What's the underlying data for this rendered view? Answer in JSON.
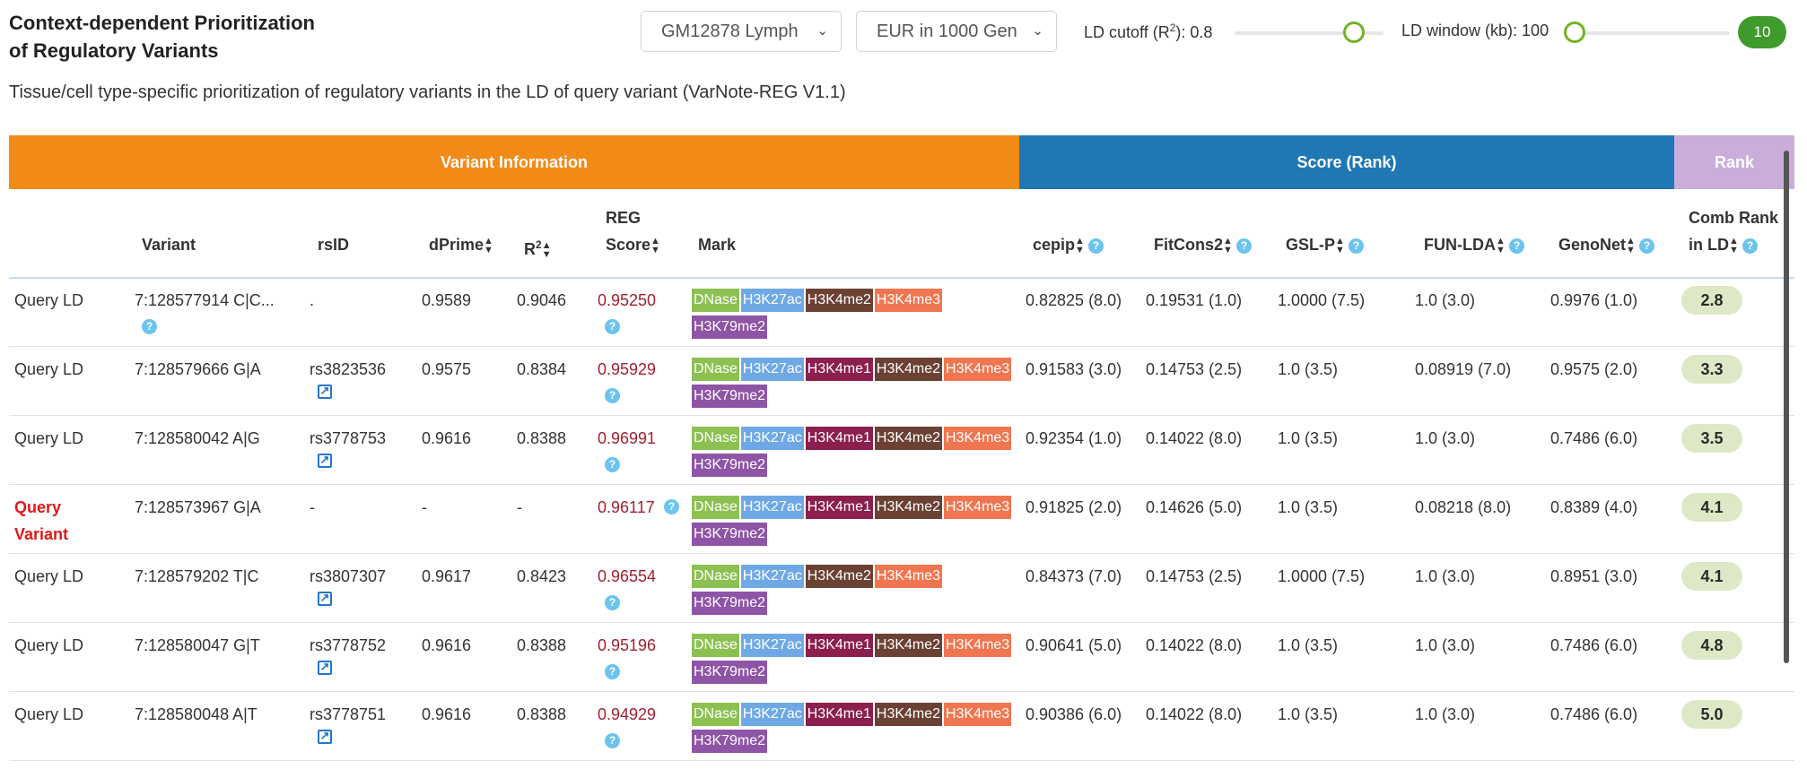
{
  "header": {
    "title_line1": "Context-dependent Prioritization",
    "title_line2": "of Regulatory Variants",
    "subtitle": "Tissue/cell type-specific prioritization of regulatory variants in the LD of query variant (VarNote-REG V1.1)"
  },
  "controls": {
    "cell_select": "GM12878 Lymph",
    "population_select": "EUR in 1000 Gen",
    "ld_cutoff_label_pre": "LD cutoff (R",
    "ld_cutoff_label_sup": "2",
    "ld_cutoff_label_post": "): 0.8",
    "ld_cutoff_value": 0.8,
    "ld_window_label": "LD window (kb): 100",
    "ld_window_value": 100,
    "count_badge": "10"
  },
  "colors": {
    "band_variant": "#f28a16",
    "band_score": "#1f77b4",
    "band_rank": "#c9aedb",
    "knob": "#72b31f",
    "badge": "#3f9b2c"
  },
  "bands": {
    "variant_info": "Variant Information",
    "score": "Score (Rank)",
    "rank": "Rank"
  },
  "columns": {
    "variant": "Variant",
    "rsid": "rsID",
    "dprime": "dPrime",
    "r2_base": "R",
    "r2_sup": "2",
    "reg_line1": "REG",
    "reg_line2": "Score",
    "mark": "Mark",
    "cepip": "cepip",
    "fitcons2": "FitCons2",
    "gslp": "GSL-P",
    "funlda": "FUN-LDA",
    "genonet": "GenoNet",
    "comb_line1": "Comb Rank",
    "comb_line2": "in LD"
  },
  "mark_colors": {
    "DNase": "#8cc152",
    "H3K27ac": "#6ea9e6",
    "H3K4me1": "#8b1f4e",
    "H3K4me2": "#6b4134",
    "H3K4me3": "#ef7650",
    "H3K79me2": "#8e54a6"
  },
  "rows": [
    {
      "type": "Query LD",
      "variant": "7:128577914 C|C...",
      "variant_help": true,
      "rsid": ".",
      "rsid_link": false,
      "dprime": "0.9589",
      "r2": "0.9046",
      "reg": "0.95250",
      "reg_help_inline": false,
      "marks": [
        "DNase",
        "H3K27ac",
        "H3K4me2",
        "H3K4me3",
        "H3K79me2"
      ],
      "cepip": "0.82825 (8.0)",
      "fitcons2": "0.19531 (1.0)",
      "gslp": "1.0000 (7.5)",
      "funlda": "1.0 (3.0)",
      "genonet": "0.9976 (1.0)",
      "comb": "2.8"
    },
    {
      "type": "Query LD",
      "variant": "7:128579666 G|A",
      "variant_help": false,
      "rsid": "rs3823536",
      "rsid_link": true,
      "dprime": "0.9575",
      "r2": "0.8384",
      "reg": "0.95929",
      "reg_help_inline": false,
      "marks": [
        "DNase",
        "H3K27ac",
        "H3K4me1",
        "H3K4me2",
        "H3K4me3",
        "H3K79me2"
      ],
      "cepip": "0.91583 (3.0)",
      "fitcons2": "0.14753 (2.5)",
      "gslp": "1.0 (3.5)",
      "funlda": "0.08919 (7.0)",
      "genonet": "0.9575 (2.0)",
      "comb": "3.3"
    },
    {
      "type": "Query LD",
      "variant": "7:128580042 A|G",
      "variant_help": false,
      "rsid": "rs3778753",
      "rsid_link": true,
      "dprime": "0.9616",
      "r2": "0.8388",
      "reg": "0.96991",
      "reg_help_inline": false,
      "marks": [
        "DNase",
        "H3K27ac",
        "H3K4me1",
        "H3K4me2",
        "H3K4me3",
        "H3K79me2"
      ],
      "cepip": "0.92354 (1.0)",
      "fitcons2": "0.14022 (8.0)",
      "gslp": "1.0 (3.5)",
      "funlda": "1.0 (3.0)",
      "genonet": "0.7486 (6.0)",
      "comb": "3.5"
    },
    {
      "type": "Query",
      "type2": "Variant",
      "query_variant": true,
      "variant": "7:128573967 G|A",
      "variant_help": false,
      "rsid": "-",
      "rsid_link": false,
      "dprime": "-",
      "r2": "-",
      "reg": "0.96117",
      "reg_help_inline": true,
      "marks": [
        "DNase",
        "H3K27ac",
        "H3K4me1",
        "H3K4me2",
        "H3K4me3",
        "H3K79me2"
      ],
      "cepip": "0.91825 (2.0)",
      "fitcons2": "0.14626 (5.0)",
      "gslp": "1.0 (3.5)",
      "funlda": "0.08218 (8.0)",
      "genonet": "0.8389 (4.0)",
      "comb": "4.1"
    },
    {
      "type": "Query LD",
      "variant": "7:128579202 T|C",
      "variant_help": false,
      "rsid": "rs3807307",
      "rsid_link": true,
      "dprime": "0.9617",
      "r2": "0.8423",
      "reg": "0.96554",
      "reg_help_inline": false,
      "marks": [
        "DNase",
        "H3K27ac",
        "H3K4me2",
        "H3K4me3",
        "H3K79me2"
      ],
      "cepip": "0.84373 (7.0)",
      "fitcons2": "0.14753 (2.5)",
      "gslp": "1.0000 (7.5)",
      "funlda": "1.0 (3.0)",
      "genonet": "0.8951 (3.0)",
      "comb": "4.1"
    },
    {
      "type": "Query LD",
      "variant": "7:128580047 G|T",
      "variant_help": false,
      "rsid": "rs3778752",
      "rsid_link": true,
      "dprime": "0.9616",
      "r2": "0.8388",
      "reg": "0.95196",
      "reg_help_inline": false,
      "marks": [
        "DNase",
        "H3K27ac",
        "H3K4me1",
        "H3K4me2",
        "H3K4me3",
        "H3K79me2"
      ],
      "cepip": "0.90641 (5.0)",
      "fitcons2": "0.14022 (8.0)",
      "gslp": "1.0 (3.5)",
      "funlda": "1.0 (3.0)",
      "genonet": "0.7486 (6.0)",
      "comb": "4.8"
    },
    {
      "type": "Query LD",
      "variant": "7:128580048 A|T",
      "variant_help": false,
      "rsid": "rs3778751",
      "rsid_link": true,
      "dprime": "0.9616",
      "r2": "0.8388",
      "reg": "0.94929",
      "reg_help_inline": false,
      "marks": [
        "DNase",
        "H3K27ac",
        "H3K4me1",
        "H3K4me2",
        "H3K4me3",
        "H3K79me2"
      ],
      "cepip": "0.90386 (6.0)",
      "fitcons2": "0.14022 (8.0)",
      "gslp": "1.0 (3.5)",
      "funlda": "1.0 (3.0)",
      "genonet": "0.7486 (6.0)",
      "comb": "5.0"
    }
  ]
}
